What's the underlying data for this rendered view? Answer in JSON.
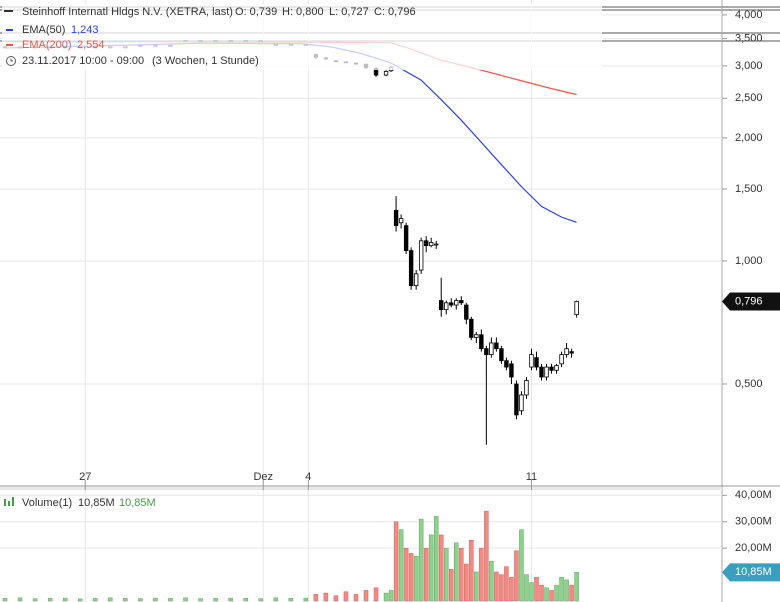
{
  "chart_data": [
    {
      "type": "candlestick",
      "title": "Steinhoff Internatl Hldgs N.V. (XETRA, last)",
      "quote_labels": [
        "O: 0,739",
        "H: 0,800",
        "L: 0,727",
        "C: 0,796"
      ],
      "period": "23.11.2017 10:00 - 09:00",
      "interval": "(3 Wochen, 1 Stunde)",
      "log_scale": true,
      "grid": true,
      "xlim": [
        0,
        144
      ],
      "xticks": [
        {
          "value": 17,
          "label": "27"
        },
        {
          "value": 52.5,
          "label": "Dez"
        },
        {
          "value": 61.5,
          "label": "4"
        },
        {
          "value": 106,
          "label": "11"
        }
      ],
      "ylim": [
        0.283,
        4.35
      ],
      "yticks": [
        {
          "value": 0.5,
          "label": "0,500"
        },
        {
          "value": 1,
          "label": "1,000"
        },
        {
          "value": 1.5,
          "label": "1,500"
        },
        {
          "value": 2,
          "label": "2,000"
        },
        {
          "value": 2.5,
          "label": "2,500"
        },
        {
          "value": 3,
          "label": "3,000"
        },
        {
          "value": 3.5,
          "label": "3,500"
        },
        {
          "value": 4,
          "label": "4,000"
        }
      ],
      "up_color": "#ffffff",
      "down_color": "#000000",
      "last_label": "0,796",
      "x": [
        1,
        4,
        7,
        10,
        13,
        16,
        19,
        22,
        25,
        28,
        31,
        34,
        37,
        40,
        43,
        46,
        49,
        52,
        55,
        58,
        61,
        63,
        65,
        67,
        69,
        71,
        73,
        75,
        77,
        78,
        79,
        80,
        81,
        82,
        83,
        84,
        85,
        86,
        87,
        88,
        89,
        90,
        91,
        92,
        93,
        94,
        95,
        96,
        97,
        98,
        99,
        100,
        101,
        102,
        103,
        104,
        105,
        106,
        107,
        108,
        109,
        110,
        111,
        112,
        113,
        114,
        115
      ],
      "open": [
        3.34,
        3.34,
        3.34,
        3.34,
        3.34,
        3.34,
        3.34,
        3.34,
        3.34,
        3.37,
        3.37,
        3.37,
        3.46,
        3.46,
        3.46,
        3.46,
        3.46,
        3.46,
        3.39,
        3.39,
        3.39,
        3.2,
        3.14,
        3.09,
        3.07,
        3.05,
        3.03,
        2.96,
        2.85,
        2.92,
        1.33,
        1.24,
        1.22,
        1.06,
        0.87,
        0.95,
        1.12,
        1.09,
        1.1,
        0.8,
        0.76,
        0.79,
        0.78,
        0.8,
        0.78,
        0.72,
        0.65,
        0.66,
        0.61,
        0.59,
        0.63,
        0.61,
        0.57,
        0.56,
        0.5,
        0.43,
        0.47,
        0.55,
        0.58,
        0.55,
        0.52,
        0.55,
        0.54,
        0.56,
        0.59,
        0.6,
        0.739
      ],
      "high": [
        3.35,
        3.35,
        3.35,
        3.35,
        3.35,
        3.35,
        3.35,
        3.35,
        3.35,
        3.38,
        3.38,
        3.38,
        3.47,
        3.47,
        3.47,
        3.47,
        3.47,
        3.47,
        3.4,
        3.4,
        3.4,
        3.22,
        3.16,
        3.1,
        3.08,
        3.06,
        3.04,
        2.98,
        2.93,
        3.0,
        1.44,
        1.3,
        1.24,
        1.08,
        0.95,
        1.14,
        1.15,
        1.14,
        1.12,
        0.91,
        0.8,
        0.81,
        0.81,
        0.82,
        0.79,
        0.73,
        0.67,
        0.68,
        0.62,
        0.65,
        0.65,
        0.62,
        0.58,
        0.57,
        0.51,
        0.48,
        0.52,
        0.61,
        0.6,
        0.56,
        0.56,
        0.56,
        0.56,
        0.6,
        0.63,
        0.61,
        0.8
      ],
      "low": [
        3.33,
        3.33,
        3.33,
        3.33,
        3.33,
        3.33,
        3.33,
        3.33,
        3.33,
        3.36,
        3.36,
        3.36,
        3.45,
        3.45,
        3.45,
        3.45,
        3.45,
        3.45,
        3.38,
        3.38,
        3.38,
        3.12,
        3.1,
        3.06,
        3.05,
        3.02,
        2.95,
        2.82,
        2.83,
        2.9,
        1.18,
        1.2,
        1.04,
        0.85,
        0.85,
        0.93,
        1.05,
        1.08,
        1.07,
        0.73,
        0.74,
        0.77,
        0.76,
        0.78,
        0.7,
        0.64,
        0.63,
        0.6,
        0.355,
        0.58,
        0.6,
        0.56,
        0.54,
        0.5,
        0.41,
        0.42,
        0.46,
        0.54,
        0.54,
        0.51,
        0.51,
        0.53,
        0.53,
        0.55,
        0.58,
        0.58,
        0.727
      ],
      "close": [
        3.34,
        3.34,
        3.34,
        3.34,
        3.34,
        3.34,
        3.34,
        3.34,
        3.34,
        3.37,
        3.37,
        3.37,
        3.46,
        3.46,
        3.46,
        3.46,
        3.46,
        3.46,
        3.39,
        3.39,
        3.39,
        3.15,
        3.12,
        3.08,
        3.06,
        3.04,
        2.97,
        2.85,
        2.91,
        2.98,
        1.22,
        1.27,
        1.06,
        0.87,
        0.93,
        1.12,
        1.09,
        1.11,
        1.1,
        0.76,
        0.79,
        0.78,
        0.8,
        0.79,
        0.72,
        0.65,
        0.66,
        0.61,
        0.59,
        0.63,
        0.61,
        0.57,
        0.55,
        0.52,
        0.42,
        0.47,
        0.51,
        0.59,
        0.55,
        0.52,
        0.55,
        0.54,
        0.555,
        0.59,
        0.61,
        0.595,
        0.796
      ],
      "overlays": [
        {
          "name": "EMA(50)",
          "label": "1,243",
          "color": "#2a3ff0",
          "x": [
            1,
            20,
            40,
            60,
            66,
            72,
            78,
            84,
            88,
            92,
            96,
            100,
            104,
            108,
            112,
            115
          ],
          "values": [
            3.32,
            3.36,
            3.41,
            3.4,
            3.34,
            3.22,
            3.05,
            2.77,
            2.48,
            2.21,
            1.95,
            1.72,
            1.52,
            1.36,
            1.28,
            1.243
          ]
        },
        {
          "name": "EMA(200)",
          "label": "2,554",
          "color": "#e8584c",
          "x": [
            1,
            40,
            78,
            82,
            88,
            96,
            104,
            110,
            115
          ],
          "values": [
            3.44,
            3.44,
            3.42,
            3.3,
            3.1,
            2.93,
            2.76,
            2.64,
            2.554
          ]
        }
      ]
    },
    {
      "type": "bar",
      "name": "Volume(1)",
      "legend_labels": [
        "10,85M",
        "10,85M"
      ],
      "up_color": "#8fd08f",
      "down_color": "#f08a84",
      "ylim": [
        0,
        42
      ],
      "yticks": [
        {
          "value": 20,
          "label": "20,00M"
        },
        {
          "value": 30,
          "label": "30,00M"
        },
        {
          "value": 40,
          "label": "40,00M"
        }
      ],
      "last_label": "10,85M",
      "values": [
        1,
        1.2,
        0.9,
        1,
        1.1,
        0.8,
        1,
        1.2,
        1,
        0.9,
        1.1,
        1,
        1.2,
        0.9,
        1,
        1.1,
        1,
        0.9,
        1.2,
        1,
        1.1,
        2.5,
        3,
        2,
        3.5,
        2.5,
        4,
        5,
        3,
        4,
        30,
        27,
        20,
        18,
        17,
        31,
        20,
        25,
        32,
        25,
        20,
        12,
        22,
        20,
        14,
        23,
        11,
        20,
        34,
        15,
        11,
        10,
        13,
        9,
        19,
        27,
        10,
        7,
        9,
        6,
        5,
        4,
        6,
        9,
        8,
        6,
        10.85
      ]
    }
  ]
}
